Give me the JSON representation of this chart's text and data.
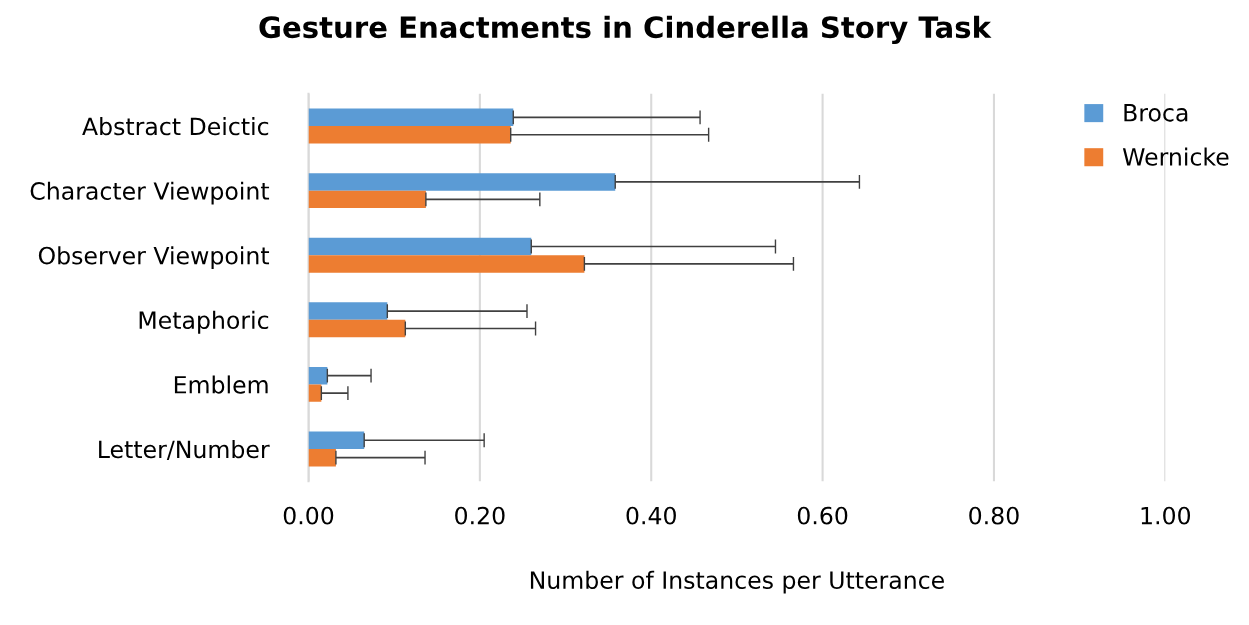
{
  "chart_data": {
    "type": "bar",
    "orientation": "horizontal",
    "title": "Gesture Enactments in Cinderella Story Task",
    "xlabel": "Number of Instances per Utterance",
    "categories": [
      "Abstract Deictic",
      "Character Viewpoint",
      "Observer Viewpoint",
      "Metaphoric",
      "Emblem",
      "Letter/Number"
    ],
    "series": [
      {
        "name": "Broca",
        "color": "#5b9bd5",
        "values": [
          0.239,
          0.358,
          0.26,
          0.092,
          0.022,
          0.065
        ],
        "errors": [
          [
            0.239,
            0.457
          ],
          [
            0.358,
            0.643
          ],
          [
            0.26,
            0.545
          ],
          [
            0.092,
            0.255
          ],
          [
            0.022,
            0.073
          ],
          [
            0.065,
            0.205
          ]
        ]
      },
      {
        "name": "Wernicke",
        "color": "#ed7d31",
        "values": [
          0.236,
          0.137,
          0.322,
          0.113,
          0.015,
          0.032
        ],
        "errors": [
          [
            0.236,
            0.467
          ],
          [
            0.137,
            0.27
          ],
          [
            0.322,
            0.566
          ],
          [
            0.113,
            0.265
          ],
          [
            0.015,
            0.046
          ],
          [
            0.032,
            0.136
          ]
        ]
      }
    ],
    "xlim": [
      0,
      1
    ],
    "xticks": [
      {
        "value": 0,
        "label": "0.00"
      },
      {
        "value": 0.2,
        "label": "0.20"
      },
      {
        "value": 0.4,
        "label": "0.40"
      },
      {
        "value": 0.6,
        "label": "0.60"
      },
      {
        "value": 0.8,
        "label": "0.80"
      },
      {
        "value": 1,
        "label": "1.00"
      }
    ],
    "grid": "x",
    "legend": "top right"
  }
}
